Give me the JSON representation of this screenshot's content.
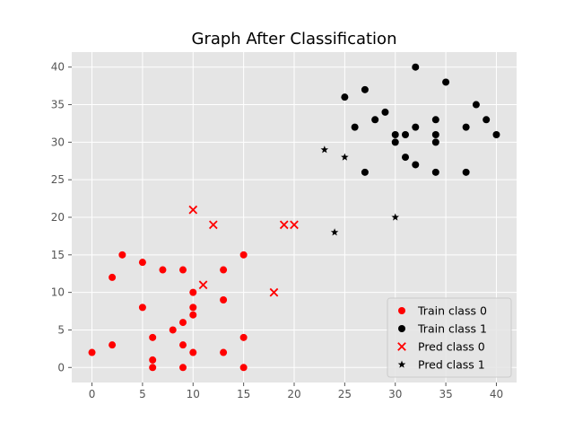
{
  "chart_data": {
    "type": "scatter",
    "title": "Graph After Classification",
    "xlabel": "",
    "ylabel": "",
    "xlim": [
      -2,
      42
    ],
    "ylim": [
      -2,
      42
    ],
    "xticks": [
      0,
      5,
      10,
      15,
      20,
      25,
      30,
      35,
      40
    ],
    "yticks": [
      0,
      5,
      10,
      15,
      20,
      25,
      30,
      35,
      40
    ],
    "grid": true,
    "legend_position": "lower-right",
    "background": "#e5e5e5",
    "series": [
      {
        "name": "Train class 0",
        "marker": "circle",
        "color": "#ff0000",
        "points": [
          [
            0,
            2
          ],
          [
            2,
            3
          ],
          [
            2,
            12
          ],
          [
            3,
            15
          ],
          [
            5,
            8
          ],
          [
            5,
            14
          ],
          [
            6,
            0
          ],
          [
            6,
            1
          ],
          [
            6,
            4
          ],
          [
            7,
            13
          ],
          [
            8,
            5
          ],
          [
            9,
            0
          ],
          [
            9,
            3
          ],
          [
            9,
            6
          ],
          [
            9,
            13
          ],
          [
            10,
            2
          ],
          [
            10,
            7
          ],
          [
            10,
            8
          ],
          [
            10,
            10
          ],
          [
            13,
            2
          ],
          [
            13,
            9
          ],
          [
            13,
            13
          ],
          [
            15,
            0
          ],
          [
            15,
            4
          ],
          [
            15,
            15
          ]
        ]
      },
      {
        "name": "Train class 1",
        "marker": "circle",
        "color": "#000000",
        "points": [
          [
            25,
            36
          ],
          [
            26,
            32
          ],
          [
            27,
            26
          ],
          [
            27,
            37
          ],
          [
            28,
            33
          ],
          [
            29,
            34
          ],
          [
            30,
            30
          ],
          [
            30,
            31
          ],
          [
            31,
            28
          ],
          [
            31,
            31
          ],
          [
            32,
            27
          ],
          [
            32,
            32
          ],
          [
            32,
            40
          ],
          [
            34,
            26
          ],
          [
            34,
            30
          ],
          [
            34,
            31
          ],
          [
            34,
            33
          ],
          [
            35,
            38
          ],
          [
            37,
            26
          ],
          [
            37,
            32
          ],
          [
            38,
            35
          ],
          [
            39,
            33
          ],
          [
            40,
            31
          ]
        ]
      },
      {
        "name": "Pred class 0",
        "marker": "x",
        "color": "#ff0000",
        "points": [
          [
            10,
            21
          ],
          [
            11,
            11
          ],
          [
            12,
            19
          ],
          [
            18,
            10
          ],
          [
            19,
            19
          ],
          [
            20,
            19
          ]
        ]
      },
      {
        "name": "Pred class 1",
        "marker": "star",
        "color": "#000000",
        "points": [
          [
            23,
            29
          ],
          [
            24,
            18
          ],
          [
            25,
            28
          ],
          [
            30,
            20
          ]
        ]
      }
    ]
  }
}
